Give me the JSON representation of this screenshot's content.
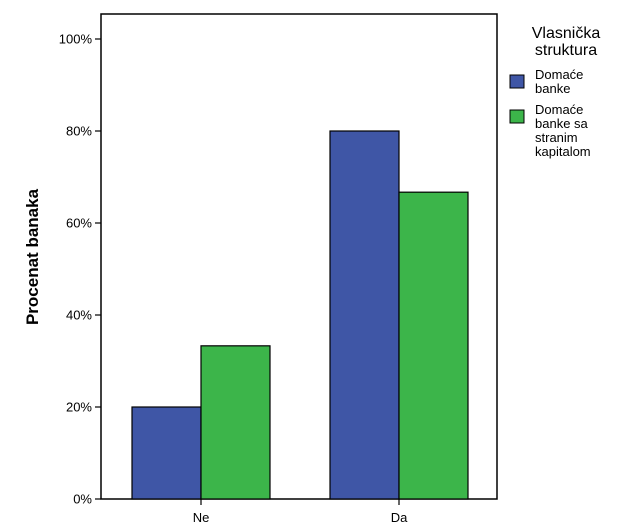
{
  "chart_data": {
    "type": "bar",
    "ylabel": "Procenat banaka",
    "xlabel": "",
    "categories": [
      "Ne",
      "Da"
    ],
    "y_tick_labels": [
      "0%",
      "20%",
      "40%",
      "60%",
      "80%",
      "100%"
    ],
    "ylim": [
      0,
      104
    ],
    "grid": false,
    "legend": {
      "title_lines": [
        "Vlasnička",
        "struktura"
      ],
      "placement": "right"
    },
    "series": [
      {
        "name": "Domaće banke",
        "label_lines": [
          "Domaće",
          "banke"
        ],
        "values": [
          20,
          80
        ],
        "color": "#3f56a6"
      },
      {
        "name": "Domaće banke sa stranim kapitalom",
        "label_lines": [
          "Domaće",
          "banke sa",
          "stranim",
          "kapitalom"
        ],
        "values": [
          33.3,
          66.7
        ],
        "color": "#3cb54a"
      }
    ]
  }
}
